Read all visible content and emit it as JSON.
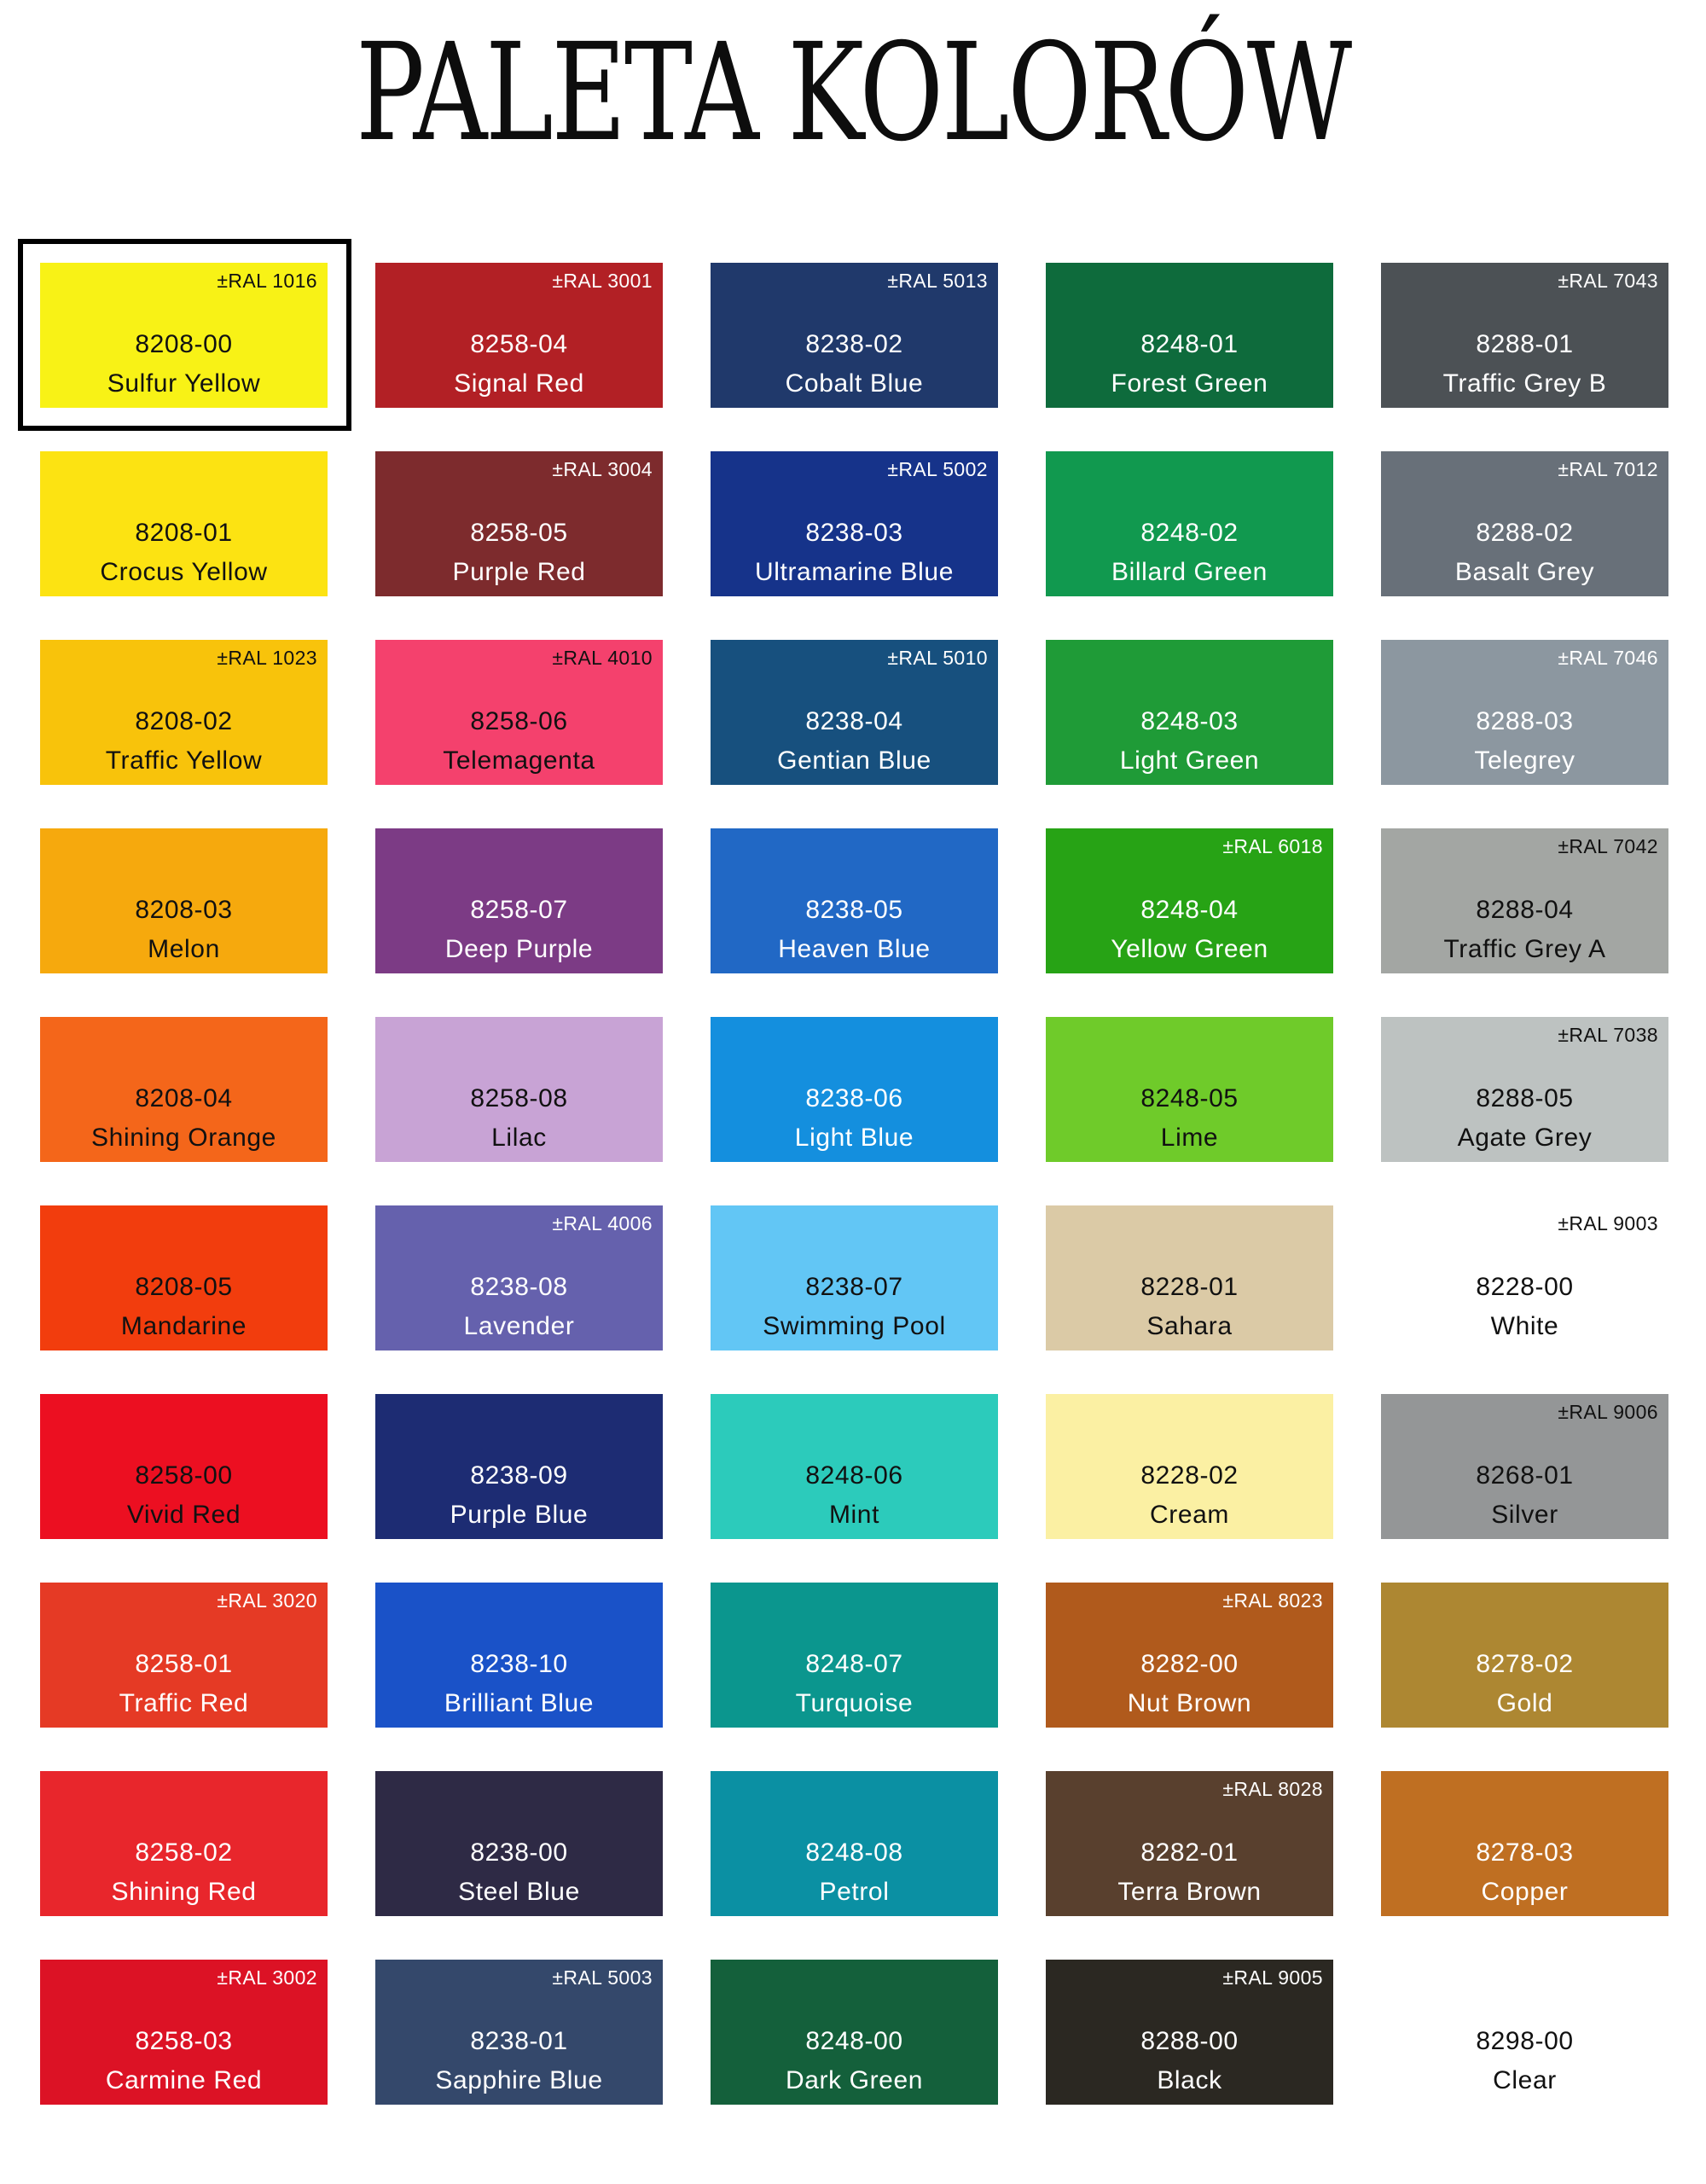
{
  "title": "PALETA KOLORÓW",
  "palette": {
    "columns": 5,
    "selected_border_color": "#000000",
    "swatches": [
      {
        "ral": "±RAL 1016",
        "code": "8208-00",
        "name": "Sulfur Yellow",
        "color": "#f8f216",
        "text_color": "#111111",
        "selected": true
      },
      {
        "ral": "±RAL 3001",
        "code": "8258-04",
        "name": "Signal Red",
        "color": "#b22025",
        "text_color": "#ffffff",
        "selected": false
      },
      {
        "ral": "±RAL 5013",
        "code": "8238-02",
        "name": "Cobalt Blue",
        "color": "#20396b",
        "text_color": "#ffffff",
        "selected": false
      },
      {
        "ral": "",
        "code": "8248-01",
        "name": "Forest Green",
        "color": "#0e6b3c",
        "text_color": "#ffffff",
        "selected": false
      },
      {
        "ral": "±RAL 7043",
        "code": "8288-01",
        "name": "Traffic Grey B",
        "color": "#4c5155",
        "text_color": "#ffffff",
        "selected": false
      },
      {
        "ral": "",
        "code": "8208-01",
        "name": "Crocus Yellow",
        "color": "#fce312",
        "text_color": "#111111",
        "selected": false
      },
      {
        "ral": "±RAL 3004",
        "code": "8258-05",
        "name": "Purple Red",
        "color": "#7d2b2d",
        "text_color": "#ffffff",
        "selected": false
      },
      {
        "ral": "±RAL 5002",
        "code": "8238-03",
        "name": "Ultramarine Blue",
        "color": "#16338a",
        "text_color": "#ffffff",
        "selected": false
      },
      {
        "ral": "",
        "code": "8248-02",
        "name": "Billard Green",
        "color": "#11994f",
        "text_color": "#ffffff",
        "selected": false
      },
      {
        "ral": "±RAL 7012",
        "code": "8288-02",
        "name": "Basalt Grey",
        "color": "#687079",
        "text_color": "#ffffff",
        "selected": false
      },
      {
        "ral": "±RAL 1023",
        "code": "8208-02",
        "name": "Traffic Yellow",
        "color": "#f8c30b",
        "text_color": "#111111",
        "selected": false
      },
      {
        "ral": "±RAL 4010",
        "code": "8258-06",
        "name": "Telemagenta",
        "color": "#f4416d",
        "text_color": "#111111",
        "selected": false
      },
      {
        "ral": "±RAL 5010",
        "code": "8238-04",
        "name": "Gentian Blue",
        "color": "#17507e",
        "text_color": "#ffffff",
        "selected": false
      },
      {
        "ral": "",
        "code": "8248-03",
        "name": "Light Green",
        "color": "#1f9b37",
        "text_color": "#ffffff",
        "selected": false
      },
      {
        "ral": "±RAL 7046",
        "code": "8288-03",
        "name": "Telegrey",
        "color": "#8c97a0",
        "text_color": "#ffffff",
        "selected": false
      },
      {
        "ral": "",
        "code": "8208-03",
        "name": "Melon",
        "color": "#f6a90d",
        "text_color": "#111111",
        "selected": false
      },
      {
        "ral": "",
        "code": "8258-07",
        "name": "Deep Purple",
        "color": "#7c3b85",
        "text_color": "#ffffff",
        "selected": false
      },
      {
        "ral": "",
        "code": "8238-05",
        "name": "Heaven Blue",
        "color": "#2168c5",
        "text_color": "#ffffff",
        "selected": false
      },
      {
        "ral": "±RAL 6018",
        "code": "8248-04",
        "name": "Yellow Green",
        "color": "#27a315",
        "text_color": "#ffffff",
        "selected": false
      },
      {
        "ral": "±RAL 7042",
        "code": "8288-04",
        "name": "Traffic Grey A",
        "color": "#a3a6a3",
        "text_color": "#111111",
        "selected": false
      },
      {
        "ral": "",
        "code": "8208-04",
        "name": "Shining Orange",
        "color": "#f4661a",
        "text_color": "#111111",
        "selected": false
      },
      {
        "ral": "",
        "code": "8258-08",
        "name": "Lilac",
        "color": "#c8a3d5",
        "text_color": "#111111",
        "selected": false
      },
      {
        "ral": "",
        "code": "8238-06",
        "name": "Light Blue",
        "color": "#148fde",
        "text_color": "#ffffff",
        "selected": false
      },
      {
        "ral": "",
        "code": "8248-05",
        "name": "Lime",
        "color": "#6fcb2a",
        "text_color": "#111111",
        "selected": false
      },
      {
        "ral": "±RAL 7038",
        "code": "8288-05",
        "name": "Agate Grey",
        "color": "#bdc2c1",
        "text_color": "#111111",
        "selected": false
      },
      {
        "ral": "",
        "code": "8208-05",
        "name": "Mandarine",
        "color": "#f23d0d",
        "text_color": "#111111",
        "selected": false
      },
      {
        "ral": "±RAL 4006",
        "code": "8238-08",
        "name": "Lavender",
        "color": "#6561ad",
        "text_color": "#ffffff",
        "selected": false
      },
      {
        "ral": "",
        "code": "8238-07",
        "name": "Swimming Pool",
        "color": "#62c6f5",
        "text_color": "#111111",
        "selected": false
      },
      {
        "ral": "",
        "code": "8228-01",
        "name": "Sahara",
        "color": "#dbcaa6",
        "text_color": "#111111",
        "selected": false
      },
      {
        "ral": "±RAL 9003",
        "code": "8228-00",
        "name": "White",
        "color": "#ffffff",
        "text_color": "#111111",
        "selected": false
      },
      {
        "ral": "",
        "code": "8258-00",
        "name": "Vivid Red",
        "color": "#ec0f21",
        "text_color": "#111111",
        "selected": false
      },
      {
        "ral": "",
        "code": "8238-09",
        "name": "Purple Blue",
        "color": "#1d2c73",
        "text_color": "#ffffff",
        "selected": false
      },
      {
        "ral": "",
        "code": "8248-06",
        "name": "Mint",
        "color": "#2ccbbb",
        "text_color": "#111111",
        "selected": false
      },
      {
        "ral": "",
        "code": "8228-02",
        "name": "Cream",
        "color": "#fbf0a3",
        "text_color": "#111111",
        "selected": false
      },
      {
        "ral": "±RAL 9006",
        "code": "8268-01",
        "name": "Silver",
        "color": "#949697",
        "text_color": "#111111",
        "selected": false
      },
      {
        "ral": "±RAL 3020",
        "code": "8258-01",
        "name": "Traffic Red",
        "color": "#e53a25",
        "text_color": "#ffffff",
        "selected": false
      },
      {
        "ral": "",
        "code": "8238-10",
        "name": "Brilliant Blue",
        "color": "#1a52c8",
        "text_color": "#ffffff",
        "selected": false
      },
      {
        "ral": "",
        "code": "8248-07",
        "name": "Turquoise",
        "color": "#0b968e",
        "text_color": "#ffffff",
        "selected": false
      },
      {
        "ral": "±RAL 8023",
        "code": "8282-00",
        "name": "Nut Brown",
        "color": "#b05a1c",
        "text_color": "#ffffff",
        "selected": false
      },
      {
        "ral": "",
        "code": "8278-02",
        "name": "Gold",
        "color": "#ad8732",
        "text_color": "#ffffff",
        "selected": false
      },
      {
        "ral": "",
        "code": "8258-02",
        "name": "Shining Red",
        "color": "#e8262c",
        "text_color": "#ffffff",
        "selected": false
      },
      {
        "ral": "",
        "code": "8238-00",
        "name": "Steel Blue",
        "color": "#2e2a45",
        "text_color": "#ffffff",
        "selected": false
      },
      {
        "ral": "",
        "code": "8248-08",
        "name": "Petrol",
        "color": "#0b90a3",
        "text_color": "#ffffff",
        "selected": false
      },
      {
        "ral": "±RAL 8028",
        "code": "8282-01",
        "name": "Terra Brown",
        "color": "#59402e",
        "text_color": "#ffffff",
        "selected": false
      },
      {
        "ral": "",
        "code": "8278-03",
        "name": "Copper",
        "color": "#bf6f22",
        "text_color": "#ffffff",
        "selected": false
      },
      {
        "ral": "±RAL 3002",
        "code": "8258-03",
        "name": "Carmine Red",
        "color": "#dc1225",
        "text_color": "#ffffff",
        "selected": false
      },
      {
        "ral": "±RAL 5003",
        "code": "8238-01",
        "name": "Sapphire Blue",
        "color": "#34486b",
        "text_color": "#ffffff",
        "selected": false
      },
      {
        "ral": "",
        "code": "8248-00",
        "name": "Dark Green",
        "color": "#14603b",
        "text_color": "#ffffff",
        "selected": false
      },
      {
        "ral": "±RAL 9005",
        "code": "8288-00",
        "name": "Black",
        "color": "#2b2822",
        "text_color": "#ffffff",
        "selected": false
      },
      {
        "ral": "",
        "code": "8298-00",
        "name": "Clear",
        "color": "#ffffff",
        "text_color": "#111111",
        "selected": false
      }
    ]
  }
}
